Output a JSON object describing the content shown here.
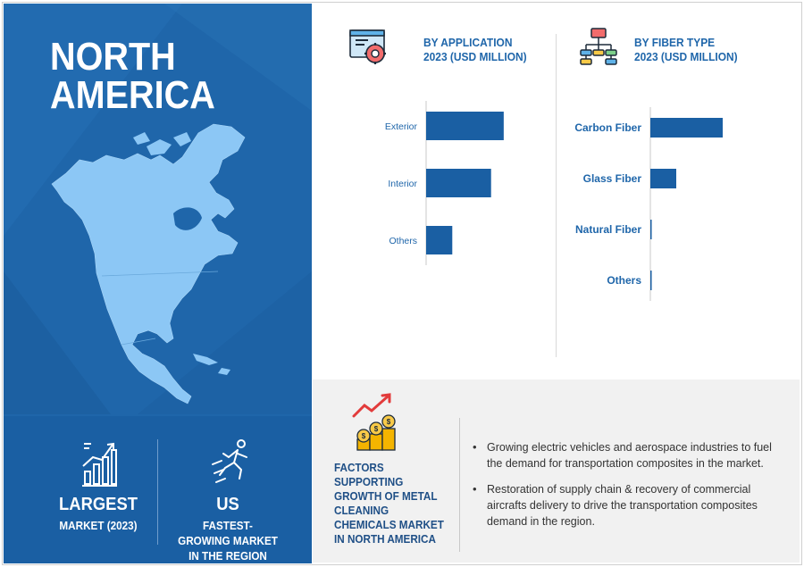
{
  "region": {
    "title_line1": "NORTH",
    "title_line2": "AMERICA"
  },
  "stats": [
    {
      "big": "LARGEST",
      "small_line1": "MARKET (2023)",
      "small_line2": "",
      "icon": "bar-growth-icon"
    },
    {
      "big": "US",
      "small_line1": "FASTEST-",
      "small_line2": "GROWING MARKET",
      "small_line3": "IN THE REGION",
      "icon": "runner-icon"
    }
  ],
  "colors": {
    "brand_blue": "#1f66aa",
    "bar_blue": "#1a5fa3",
    "map_light": "#8cc7f5",
    "panel_bg": "#f1f1f1"
  },
  "chart_data": [
    {
      "type": "bar",
      "orientation": "horizontal",
      "title_line1": "BY APPLICATION",
      "title_line2": "2023 (USD MILLION)",
      "icon": "gear-screen-icon",
      "categories": [
        "Exterior",
        "Interior",
        "Others"
      ],
      "values": [
        86,
        72,
        29
      ],
      "xlim": [
        0,
        100
      ],
      "grid": false,
      "legend": "none"
    },
    {
      "type": "bar",
      "orientation": "horizontal",
      "title_line1": "BY FIBER TYPE",
      "title_line2": "2023 (USD MILLION)",
      "icon": "hierarchy-icon",
      "categories": [
        "Carbon Fiber",
        "Glass Fiber",
        "Natural Fiber",
        "Others"
      ],
      "values": [
        81,
        29,
        1.5,
        1.5
      ],
      "xlim": [
        0,
        100
      ],
      "grid": false,
      "legend": "none"
    }
  ],
  "factors": {
    "title_lines": [
      "FACTORS",
      "SUPPORTING",
      "GROWTH OF METAL",
      "CLEANING",
      "CHEMICALS MARKET",
      "IN NORTH AMERICA"
    ],
    "icon": "coins-growth-icon",
    "bullets": [
      "Growing electric vehicles and aerospace industries to fuel the demand for transportation composites in the market.",
      "Restoration of supply chain & recovery of commercial aircrafts delivery to drive the transportation composites demand in the region."
    ]
  }
}
